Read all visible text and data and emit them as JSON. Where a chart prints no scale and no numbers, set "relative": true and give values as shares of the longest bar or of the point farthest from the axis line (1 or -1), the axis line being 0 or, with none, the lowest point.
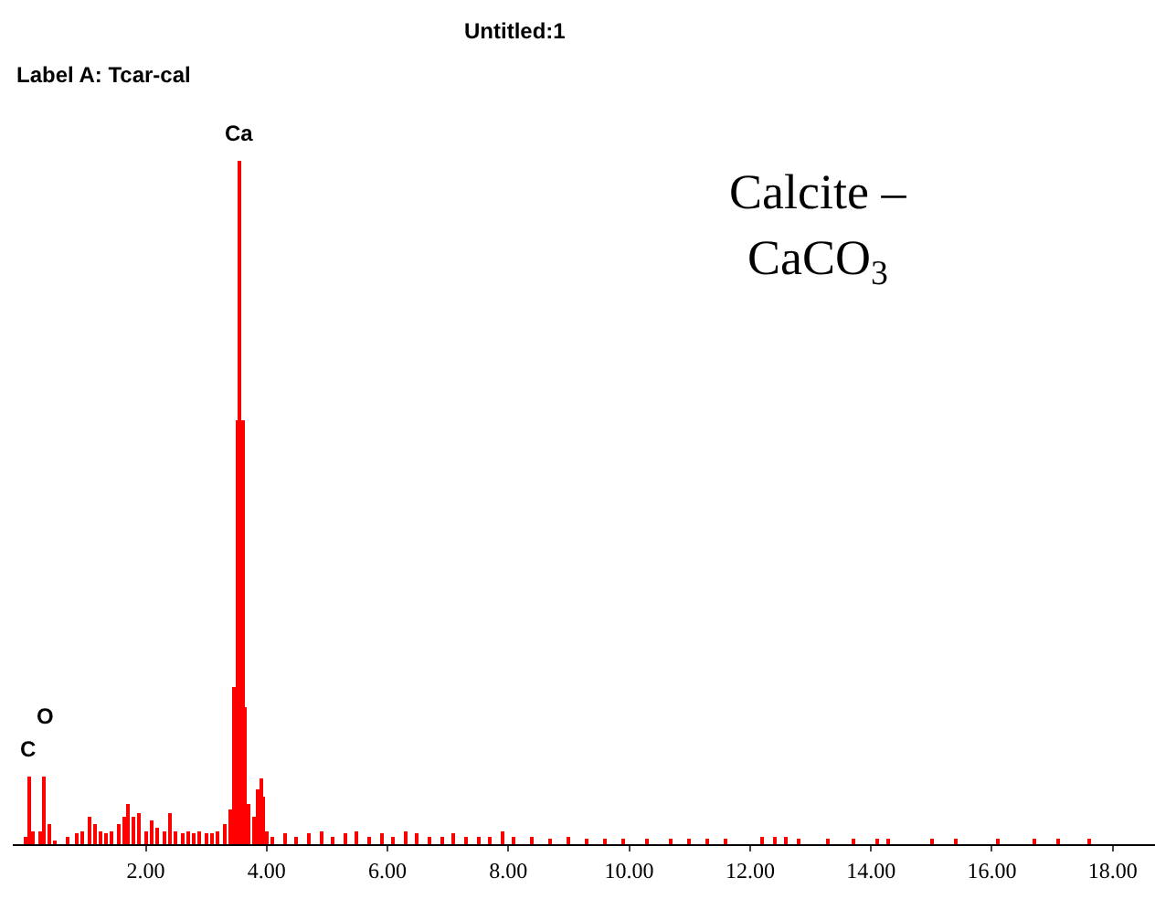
{
  "chart_data": {
    "type": "bar",
    "title": "Untitled:1",
    "subtitle": "Label A: Tcar-cal",
    "relative": true,
    "tick_labels": "x",
    "annotations": [
      "Calcite –",
      "CaCO$_{3}$",
      {
        "text": "Ca",
        "x": 3.56,
        "y": 1.0
      },
      {
        "text": "O",
        "x": 0.33,
        "y": 0.1
      },
      {
        "text": "C",
        "x": 0.06,
        "y": 0.1
      }
    ],
    "xlim": [
      -0.2,
      18.7
    ],
    "xticks": [
      {
        "value": 2,
        "label": "2.00"
      },
      {
        "value": 4,
        "label": "4.00"
      },
      {
        "value": 6,
        "label": "6.00"
      },
      {
        "value": 8,
        "label": "8.00"
      },
      {
        "value": 10,
        "label": "10.00"
      },
      {
        "value": 12,
        "label": "12.00"
      },
      {
        "value": 14,
        "label": "14.00"
      },
      {
        "value": 16,
        "label": "16.00"
      },
      {
        "value": 18,
        "label": "18.00"
      }
    ],
    "x": [
      0.0,
      0.06,
      0.12,
      0.25,
      0.33,
      0.4,
      0.5,
      0.7,
      0.85,
      0.95,
      1.06,
      1.15,
      1.25,
      1.35,
      1.45,
      1.55,
      1.65,
      1.72,
      1.8,
      1.9,
      2.0,
      2.1,
      2.2,
      2.3,
      2.4,
      2.5,
      2.6,
      2.7,
      2.8,
      2.9,
      3.0,
      3.1,
      3.2,
      3.3,
      3.4,
      3.47,
      3.52,
      3.56,
      3.6,
      3.64,
      3.7,
      3.78,
      3.85,
      3.9,
      3.95,
      4.02,
      4.1,
      4.3,
      4.5,
      4.7,
      4.9,
      5.1,
      5.3,
      5.5,
      5.7,
      5.9,
      6.1,
      6.3,
      6.5,
      6.7,
      6.9,
      7.1,
      7.3,
      7.5,
      7.7,
      7.9,
      8.1,
      8.4,
      8.7,
      9.0,
      9.3,
      9.6,
      9.9,
      10.3,
      10.7,
      11.0,
      11.3,
      11.6,
      12.2,
      12.4,
      12.6,
      12.8,
      13.3,
      13.7,
      14.1,
      14.3,
      15.0,
      15.4,
      16.1,
      16.7,
      17.1,
      17.6
    ],
    "values": [
      0.01,
      0.1,
      0.02,
      0.02,
      0.1,
      0.03,
      0.005,
      0.01,
      0.015,
      0.02,
      0.04,
      0.03,
      0.02,
      0.015,
      0.02,
      0.03,
      0.04,
      0.06,
      0.04,
      0.045,
      0.02,
      0.035,
      0.025,
      0.02,
      0.045,
      0.02,
      0.015,
      0.02,
      0.015,
      0.02,
      0.015,
      0.015,
      0.02,
      0.03,
      0.05,
      0.23,
      0.62,
      1.0,
      0.62,
      0.2,
      0.06,
      0.04,
      0.08,
      0.095,
      0.07,
      0.02,
      0.01,
      0.015,
      0.01,
      0.015,
      0.02,
      0.01,
      0.015,
      0.02,
      0.01,
      0.015,
      0.01,
      0.02,
      0.015,
      0.01,
      0.01,
      0.015,
      0.01,
      0.01,
      0.01,
      0.02,
      0.01,
      0.01,
      0.008,
      0.01,
      0.008,
      0.008,
      0.008,
      0.008,
      0.008,
      0.008,
      0.008,
      0.008,
      0.01,
      0.01,
      0.01,
      0.008,
      0.008,
      0.008,
      0.008,
      0.008,
      0.008,
      0.008,
      0.008,
      0.008,
      0.008,
      0.008
    ],
    "color": "#ff0000"
  }
}
